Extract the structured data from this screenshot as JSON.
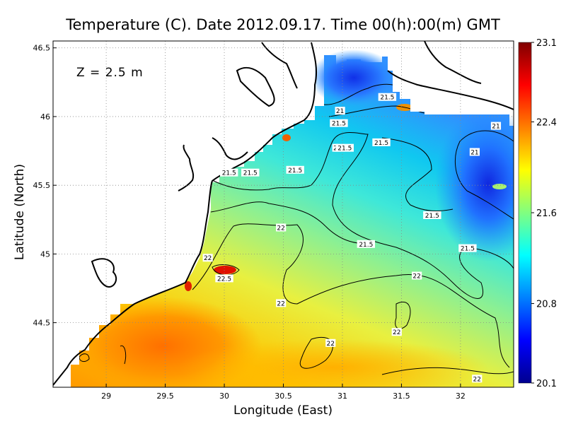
{
  "title": "Temperature (C). Date 2012.09.17. Time 00(h):00(m) GMT",
  "depth_label": "Z  =  2.5  m",
  "chart_data": {
    "type": "heatmap",
    "title": "Temperature (C). Date 2012.09.17. Time 00(h):00(m) GMT",
    "xlabel": "Longitude (East)",
    "ylabel": "Latitude (North)",
    "xlim": [
      28.55,
      32.45
    ],
    "ylim": [
      44.03,
      46.55
    ],
    "x_ticks": [
      "29",
      "29.5",
      "30",
      "30.5",
      "31",
      "31.5",
      "32"
    ],
    "x_tick_values": [
      29,
      29.5,
      30,
      30.5,
      31,
      31.5,
      32
    ],
    "y_ticks": [
      "44.5",
      "45",
      "45.5",
      "46",
      "46.5"
    ],
    "y_tick_values": [
      44.5,
      45,
      45.5,
      46,
      46.5
    ],
    "grid": true,
    "colorbar": {
      "min": 20.1,
      "max": 23.1,
      "tick_labels": [
        "23.1",
        "22.4",
        "21.6",
        "20.8",
        "20.1"
      ],
      "tick_values": [
        23.1,
        22.4,
        21.6,
        20.8,
        20.1
      ],
      "stops": [
        "#00008f",
        "#0000ff",
        "#0080ff",
        "#00ffff",
        "#80ff80",
        "#ffff00",
        "#ff8000",
        "#ff0000",
        "#800000"
      ]
    },
    "contour_labels": [
      {
        "text": "21.5",
        "lon": 31.38,
        "lat": 46.14
      },
      {
        "text": "21",
        "lon": 30.98,
        "lat": 46.04
      },
      {
        "text": "21.5",
        "lon": 30.97,
        "lat": 45.95
      },
      {
        "text": "21",
        "lon": 32.3,
        "lat": 45.93
      },
      {
        "text": "2",
        "lon": 30.94,
        "lat": 45.77
      },
      {
        "text": "21.5",
        "lon": 31.02,
        "lat": 45.77
      },
      {
        "text": "21.5",
        "lon": 31.33,
        "lat": 45.81
      },
      {
        "text": "21",
        "lon": 32.12,
        "lat": 45.74
      },
      {
        "text": "21.5",
        "lon": 30.04,
        "lat": 45.59
      },
      {
        "text": "21.5",
        "lon": 30.22,
        "lat": 45.59
      },
      {
        "text": "21.5",
        "lon": 30.6,
        "lat": 45.61
      },
      {
        "text": "21.5",
        "lon": 31.76,
        "lat": 45.28
      },
      {
        "text": "22",
        "lon": 30.48,
        "lat": 45.19
      },
      {
        "text": "21.5",
        "lon": 31.2,
        "lat": 45.07
      },
      {
        "text": "21.5",
        "lon": 32.06,
        "lat": 45.04
      },
      {
        "text": "22",
        "lon": 29.86,
        "lat": 44.97
      },
      {
        "text": "22.5",
        "lon": 30.0,
        "lat": 44.82
      },
      {
        "text": "22",
        "lon": 31.63,
        "lat": 44.84
      },
      {
        "text": "22",
        "lon": 30.48,
        "lat": 44.64
      },
      {
        "text": "22",
        "lon": 31.46,
        "lat": 44.43
      },
      {
        "text": "22",
        "lon": 30.9,
        "lat": 44.35
      },
      {
        "text": "22",
        "lon": 32.14,
        "lat": 44.09
      }
    ]
  }
}
